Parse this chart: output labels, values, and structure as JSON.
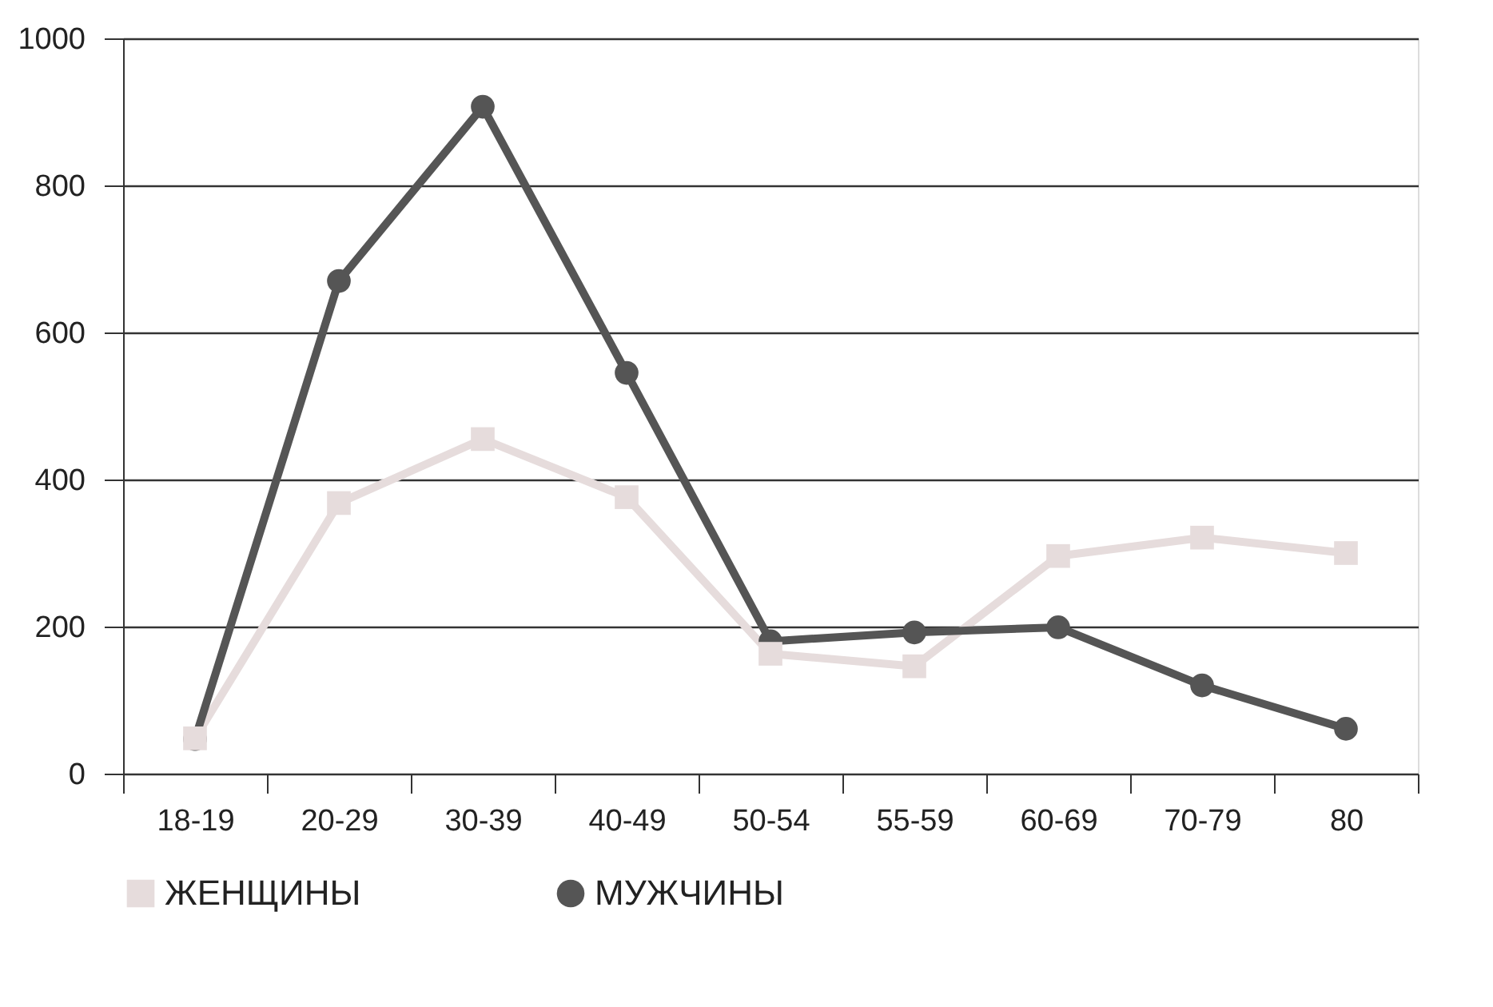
{
  "chart_data": {
    "type": "line",
    "categories": [
      "18-19",
      "20-29",
      "30-39",
      "40-49",
      "50-54",
      "55-59",
      "60-69",
      "70-79",
      "80"
    ],
    "series": [
      {
        "name": "ЖЕНЩИНЫ",
        "color": "#e6dcdc",
        "marker": "square",
        "values": [
          48,
          368,
          455,
          376,
          163,
          146,
          296,
          321,
          300
        ]
      },
      {
        "name": "МУЖЧИНЫ",
        "color": "#555555",
        "marker": "circle",
        "values": [
          47,
          670,
          907,
          545,
          180,
          192,
          199,
          120,
          61
        ]
      }
    ],
    "ylim": [
      0,
      1000
    ],
    "yticks": [
      0,
      200,
      400,
      600,
      800,
      1000
    ],
    "grid": "y",
    "legend": "bottom",
    "line_style": "solid"
  }
}
